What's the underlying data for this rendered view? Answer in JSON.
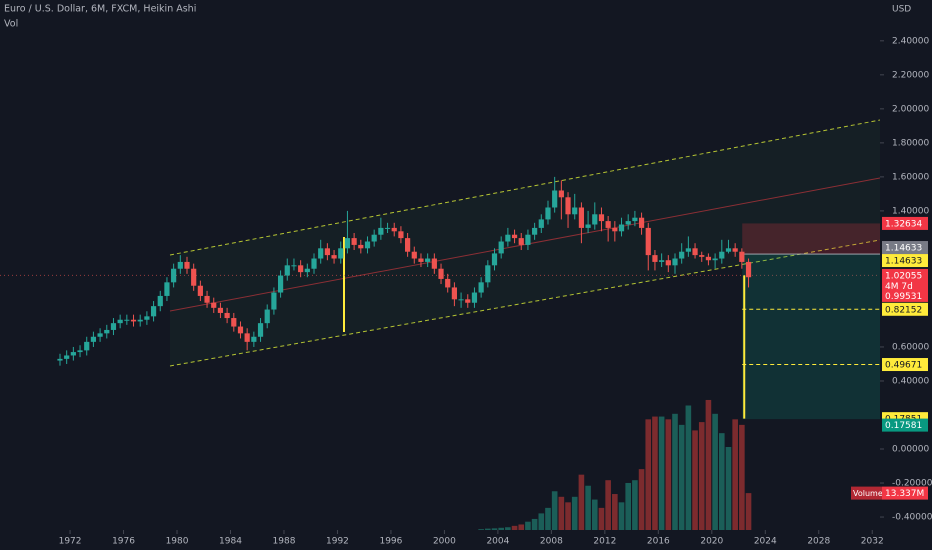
{
  "chart_data": {
    "type": "candlestick",
    "title": "Euro / U.S. Dollar, 6M, FXCM, Heikin Ashi",
    "subtitle": "Vol",
    "currency": "USD",
    "up_color": "#26a69a",
    "down_color": "#ef5350",
    "x": [
      1971,
      1971.5,
      1972,
      1972.5,
      1973,
      1973.5,
      1974,
      1974.5,
      1975,
      1975.5,
      1976,
      1976.5,
      1977,
      1977.5,
      1978,
      1978.5,
      1979,
      1979.5,
      1980,
      1980.5,
      1981,
      1981.5,
      1982,
      1982.5,
      1983,
      1983.5,
      1984,
      1984.5,
      1985,
      1985.5,
      1986,
      1986.5,
      1987,
      1987.5,
      1988,
      1988.5,
      1989,
      1989.5,
      1990,
      1990.5,
      1991,
      1991.5,
      1992,
      1992.5,
      1993,
      1993.5,
      1994,
      1994.5,
      1995,
      1995.5,
      1996,
      1996.5,
      1997,
      1997.5,
      1998,
      1998.5,
      1999,
      1999.5,
      2000,
      2000.5,
      2001,
      2001.5,
      2002,
      2002.5,
      2003,
      2003.5,
      2004,
      2004.5,
      2005,
      2005.5,
      2006,
      2006.5,
      2007,
      2007.5,
      2008,
      2008.5,
      2009,
      2009.5,
      2010,
      2010.5,
      2011,
      2011.5,
      2012,
      2012.5,
      2013,
      2013.5,
      2014,
      2014.5,
      2015,
      2015.5,
      2016,
      2016.5,
      2017,
      2017.5,
      2018,
      2018.5,
      2019,
      2019.5,
      2020,
      2020.5,
      2021,
      2021.5,
      2022,
      2022.5
    ],
    "open": [
      0.52,
      0.53,
      0.55,
      0.57,
      0.58,
      0.63,
      0.66,
      0.68,
      0.7,
      0.74,
      0.76,
      0.76,
      0.75,
      0.76,
      0.78,
      0.84,
      0.9,
      0.98,
      1.06,
      1.1,
      1.06,
      0.96,
      0.9,
      0.86,
      0.83,
      0.8,
      0.77,
      0.72,
      0.68,
      0.63,
      0.66,
      0.74,
      0.82,
      0.92,
      1.02,
      1.08,
      1.08,
      1.04,
      1.06,
      1.12,
      1.18,
      1.14,
      1.12,
      1.18,
      1.24,
      1.2,
      1.18,
      1.22,
      1.26,
      1.3,
      1.3,
      1.28,
      1.24,
      1.16,
      1.12,
      1.1,
      1.12,
      1.06,
      1.0,
      0.95,
      0.88,
      0.88,
      0.86,
      0.92,
      0.98,
      1.08,
      1.15,
      1.22,
      1.26,
      1.24,
      1.2,
      1.26,
      1.3,
      1.35,
      1.42,
      1.52,
      1.48,
      1.38,
      1.42,
      1.3,
      1.32,
      1.38,
      1.34,
      1.3,
      1.28,
      1.32,
      1.34,
      1.36,
      1.3,
      1.14,
      1.1,
      1.11,
      1.08,
      1.12,
      1.16,
      1.18,
      1.14,
      1.13,
      1.11,
      1.12,
      1.16,
      1.18,
      1.16,
      1.1
    ],
    "high": [
      0.56,
      0.58,
      0.6,
      0.61,
      0.66,
      0.69,
      0.71,
      0.73,
      0.77,
      0.79,
      0.79,
      0.79,
      0.79,
      0.81,
      0.87,
      0.93,
      1.01,
      1.09,
      1.14,
      1.13,
      1.09,
      0.99,
      0.93,
      0.89,
      0.86,
      0.83,
      0.8,
      0.75,
      0.71,
      0.69,
      0.77,
      0.85,
      0.95,
      1.05,
      1.12,
      1.12,
      1.11,
      1.09,
      1.15,
      1.23,
      1.21,
      1.17,
      1.22,
      1.4,
      1.27,
      1.23,
      1.25,
      1.29,
      1.36,
      1.33,
      1.33,
      1.31,
      1.27,
      1.19,
      1.15,
      1.15,
      1.15,
      1.09,
      1.03,
      0.98,
      0.92,
      0.91,
      0.95,
      1.01,
      1.11,
      1.18,
      1.25,
      1.3,
      1.29,
      1.27,
      1.29,
      1.33,
      1.38,
      1.46,
      1.6,
      1.58,
      1.51,
      1.5,
      1.45,
      1.4,
      1.45,
      1.42,
      1.37,
      1.34,
      1.36,
      1.38,
      1.4,
      1.39,
      1.33,
      1.17,
      1.15,
      1.14,
      1.15,
      1.21,
      1.25,
      1.21,
      1.16,
      1.15,
      1.15,
      1.23,
      1.23,
      1.21,
      1.18,
      1.12
    ],
    "low": [
      0.49,
      0.5,
      0.52,
      0.54,
      0.55,
      0.6,
      0.63,
      0.65,
      0.67,
      0.71,
      0.73,
      0.72,
      0.72,
      0.73,
      0.75,
      0.81,
      0.87,
      0.95,
      1.03,
      1.03,
      0.93,
      0.87,
      0.83,
      0.8,
      0.77,
      0.74,
      0.69,
      0.65,
      0.58,
      0.6,
      0.63,
      0.71,
      0.79,
      0.89,
      0.99,
      1.05,
      1.01,
      1.01,
      1.03,
      1.09,
      1.11,
      1.09,
      1.09,
      1.15,
      1.17,
      1.15,
      1.15,
      1.19,
      1.23,
      1.27,
      1.25,
      1.21,
      1.13,
      1.09,
      1.07,
      1.07,
      1.03,
      0.97,
      0.92,
      0.84,
      0.83,
      0.83,
      0.83,
      0.89,
      0.95,
      1.05,
      1.12,
      1.19,
      1.21,
      1.17,
      1.17,
      1.23,
      1.27,
      1.32,
      1.39,
      1.35,
      1.3,
      1.35,
      1.21,
      1.27,
      1.29,
      1.28,
      1.22,
      1.22,
      1.25,
      1.29,
      1.31,
      1.26,
      1.05,
      1.05,
      1.07,
      1.04,
      1.03,
      1.09,
      1.13,
      1.12,
      1.1,
      1.08,
      1.06,
      1.09,
      1.15,
      1.13,
      1.06,
      0.95
    ],
    "close": [
      0.53,
      0.55,
      0.57,
      0.58,
      0.63,
      0.66,
      0.68,
      0.7,
      0.74,
      0.76,
      0.76,
      0.75,
      0.76,
      0.78,
      0.84,
      0.9,
      0.98,
      1.06,
      1.1,
      1.06,
      0.96,
      0.9,
      0.86,
      0.83,
      0.8,
      0.77,
      0.72,
      0.68,
      0.63,
      0.66,
      0.74,
      0.82,
      0.92,
      1.02,
      1.08,
      1.08,
      1.04,
      1.06,
      1.12,
      1.18,
      1.14,
      1.12,
      1.18,
      1.24,
      1.2,
      1.18,
      1.22,
      1.26,
      1.3,
      1.3,
      1.28,
      1.24,
      1.16,
      1.12,
      1.1,
      1.12,
      1.06,
      1.0,
      0.95,
      0.88,
      0.88,
      0.86,
      0.92,
      0.98,
      1.08,
      1.15,
      1.22,
      1.26,
      1.24,
      1.2,
      1.26,
      1.3,
      1.35,
      1.42,
      1.52,
      1.48,
      1.38,
      1.42,
      1.3,
      1.32,
      1.38,
      1.34,
      1.3,
      1.28,
      1.32,
      1.34,
      1.36,
      1.3,
      1.14,
      1.1,
      1.11,
      1.08,
      1.12,
      1.16,
      1.18,
      1.14,
      1.13,
      1.11,
      1.12,
      1.16,
      1.18,
      1.16,
      1.1,
      1.01
    ],
    "volume": [
      null,
      null,
      null,
      null,
      null,
      null,
      null,
      null,
      null,
      null,
      null,
      null,
      null,
      null,
      null,
      null,
      null,
      null,
      null,
      null,
      null,
      null,
      null,
      null,
      null,
      null,
      null,
      null,
      null,
      null,
      null,
      null,
      null,
      null,
      null,
      null,
      null,
      null,
      null,
      null,
      null,
      null,
      null,
      null,
      null,
      null,
      null,
      null,
      null,
      null,
      null,
      null,
      null,
      null,
      null,
      null,
      null,
      null,
      null,
      null,
      null,
      null,
      null,
      0.3,
      0.5,
      0.6,
      0.8,
      1.0,
      1.5,
      2.0,
      3,
      4,
      6,
      8,
      14,
      12,
      10,
      12,
      20,
      16,
      11,
      8,
      18,
      13,
      10,
      17,
      18,
      22,
      40,
      41,
      41,
      40,
      42,
      38,
      45,
      36,
      39,
      47,
      42,
      35,
      30,
      40,
      38,
      13.337
    ],
    "volume_lim": [
      0,
      60
    ],
    "volume_label": {
      "name": "Volume",
      "text": "13.337M"
    },
    "xlim": [
      1966.76,
      2032.58
    ],
    "xticks": [
      1972,
      1976,
      1980,
      1984,
      1988,
      1992,
      1996,
      2000,
      2004,
      2008,
      2012,
      2016,
      2020,
      2024,
      2028,
      2032
    ],
    "ylim": [
      -0.535,
      2.64
    ],
    "yticks": [
      {
        "value": -0.4,
        "label": "-0.40000"
      },
      {
        "value": -0.2,
        "label": "-0.20000"
      },
      {
        "value": 0,
        "label": "0.00000"
      },
      {
        "value": 0.4,
        "label": "0.40000"
      },
      {
        "value": 0.6,
        "label": "0.60000"
      },
      {
        "value": 1.4,
        "label": "1.40000"
      },
      {
        "value": 1.6,
        "label": "1.60000"
      },
      {
        "value": 1.8,
        "label": "1.80000"
      },
      {
        "value": 2.0,
        "label": "2.00000"
      },
      {
        "value": 2.2,
        "label": "2.20000"
      },
      {
        "value": 2.4,
        "label": "2.40000"
      }
    ],
    "current_price": {
      "value": 1.02055,
      "countdown": "4M 7d",
      "close": 0.99531
    },
    "markers": [
      {
        "value": 1.32634,
        "color": "#f23645"
      },
      {
        "value": 1.14633,
        "color": "#787b86"
      },
      {
        "value": 1.14633,
        "color": "#ffeb3b"
      },
      {
        "value": 0.82152,
        "color": "#ffeb3b"
      },
      {
        "value": 0.49671,
        "color": "#ffeb3b"
      },
      {
        "value": 0.17851,
        "color": "#ffeb3b"
      },
      {
        "value": 0.17581,
        "color": "#089981"
      }
    ]
  }
}
